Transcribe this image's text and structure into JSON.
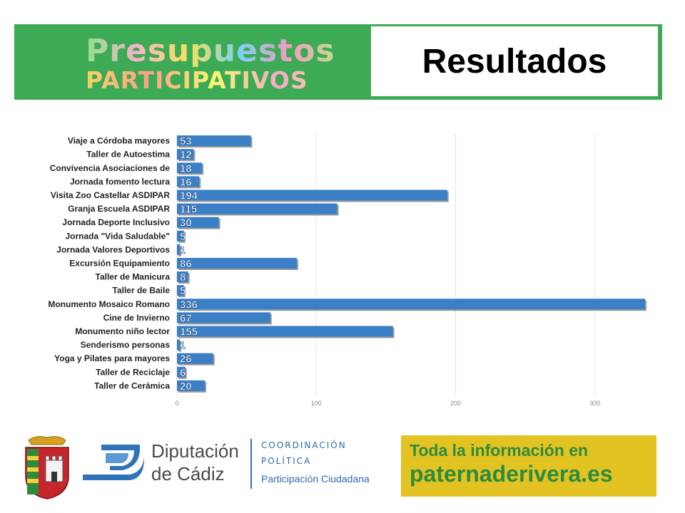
{
  "header": {
    "logo_line1": "Presupuestos",
    "logo_line2": "PARTICIPATIVOS",
    "result_title": "Resultados"
  },
  "colors": {
    "header_green": "#3daa55",
    "bar_blue": "#3b7fc6",
    "info_yellow": "#e2c322",
    "info_green": "#2e8b3e"
  },
  "chart_data": {
    "type": "bar",
    "orientation": "horizontal",
    "categories": [
      "Viaje a Córdoba mayores",
      "Taller de Autoestima",
      "Convivencia Asociaciones de",
      "Jornada fomento lectura",
      "Visita Zoo Castellar ASDIPAR",
      "Granja Escuela ASDIPAR",
      "Jornada Deporte Inclusivo",
      "Jornada \"Vida Saludable\"",
      "Jornada Valores Deportivos",
      "Excursión Equipamiento",
      "Taller de Manicura",
      "Taller de Baile",
      "Monumento Mosaico Romano",
      "Cine de Invierno",
      "Monumento niño lector",
      "Senderismo personas",
      "Yoga y Pilates para mayores",
      "Taller de Reciclaje",
      "Taller de Cerámica"
    ],
    "values": [
      53,
      12,
      18,
      16,
      194,
      115,
      30,
      5,
      1,
      86,
      8,
      5,
      336,
      67,
      155,
      1,
      26,
      6,
      20
    ],
    "value_labels": [
      "53",
      "12",
      "18",
      "16",
      "194",
      "115",
      "30",
      "5",
      "1",
      "86",
      "8",
      "5",
      "336",
      "67",
      "155",
      "1",
      "26",
      "6",
      "20"
    ],
    "xlim": [
      0,
      336
    ],
    "xticks": [
      0,
      100,
      200,
      300
    ],
    "xtick_labels": [
      "0",
      "100",
      "200",
      "300"
    ],
    "grid": true,
    "title": "",
    "xlabel": "",
    "ylabel": ""
  },
  "footer": {
    "dip_line1": "Diputación",
    "dip_line2": "de Cádiz",
    "coord_line1": "COORDINACIÓN",
    "coord_line2": "POLÍTICA",
    "coord_line3": "Participación Ciudadana",
    "info_line1": "Toda la información en",
    "info_line2": "paternaderivera.es"
  }
}
